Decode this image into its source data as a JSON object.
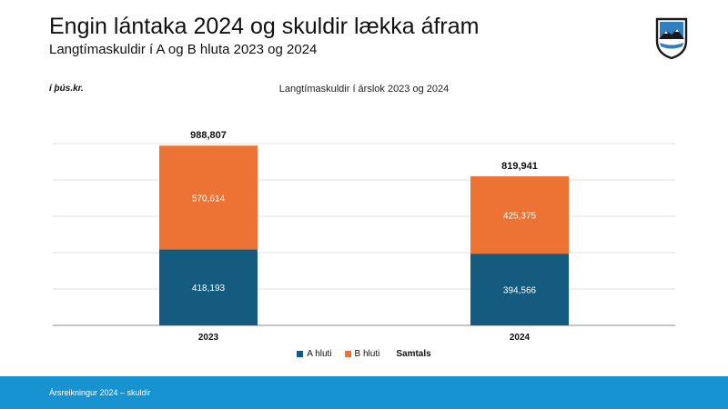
{
  "header": {
    "title": "Engin lántaka 2024 og skuldir lækka áfram",
    "subtitle": "Langtímaskuldir í A og B hluta 2023 og 2024"
  },
  "unit_label": "í þús.kr.",
  "footer": {
    "text": "Ársreikningur 2024 – skuldir"
  },
  "colors": {
    "a_hluti": "#155a7f",
    "b_hluti": "#ed7334",
    "footer": "#1793d1"
  },
  "logo": {
    "icon": "coat-of-arms-shield-icon"
  },
  "chart_data": {
    "type": "bar",
    "stacked": true,
    "title": "Langtímaskuldir í árslok 2023 og 2024",
    "categories": [
      "2023",
      "2024"
    ],
    "series": [
      {
        "name": "A hluti",
        "values": [
          418193,
          394566
        ],
        "labels": [
          "418,193",
          "394,566"
        ],
        "color": "#155a7f"
      },
      {
        "name": "B hluti",
        "values": [
          570614,
          425375
        ],
        "labels": [
          "570,614",
          "425,375"
        ],
        "color": "#ed7334"
      }
    ],
    "totals": {
      "name": "Samtals",
      "values": [
        988807,
        819941
      ],
      "labels": [
        "988,807",
        "819,941"
      ]
    },
    "ylim": [
      0,
      1000000
    ],
    "grid": true,
    "legend": "bottom"
  }
}
